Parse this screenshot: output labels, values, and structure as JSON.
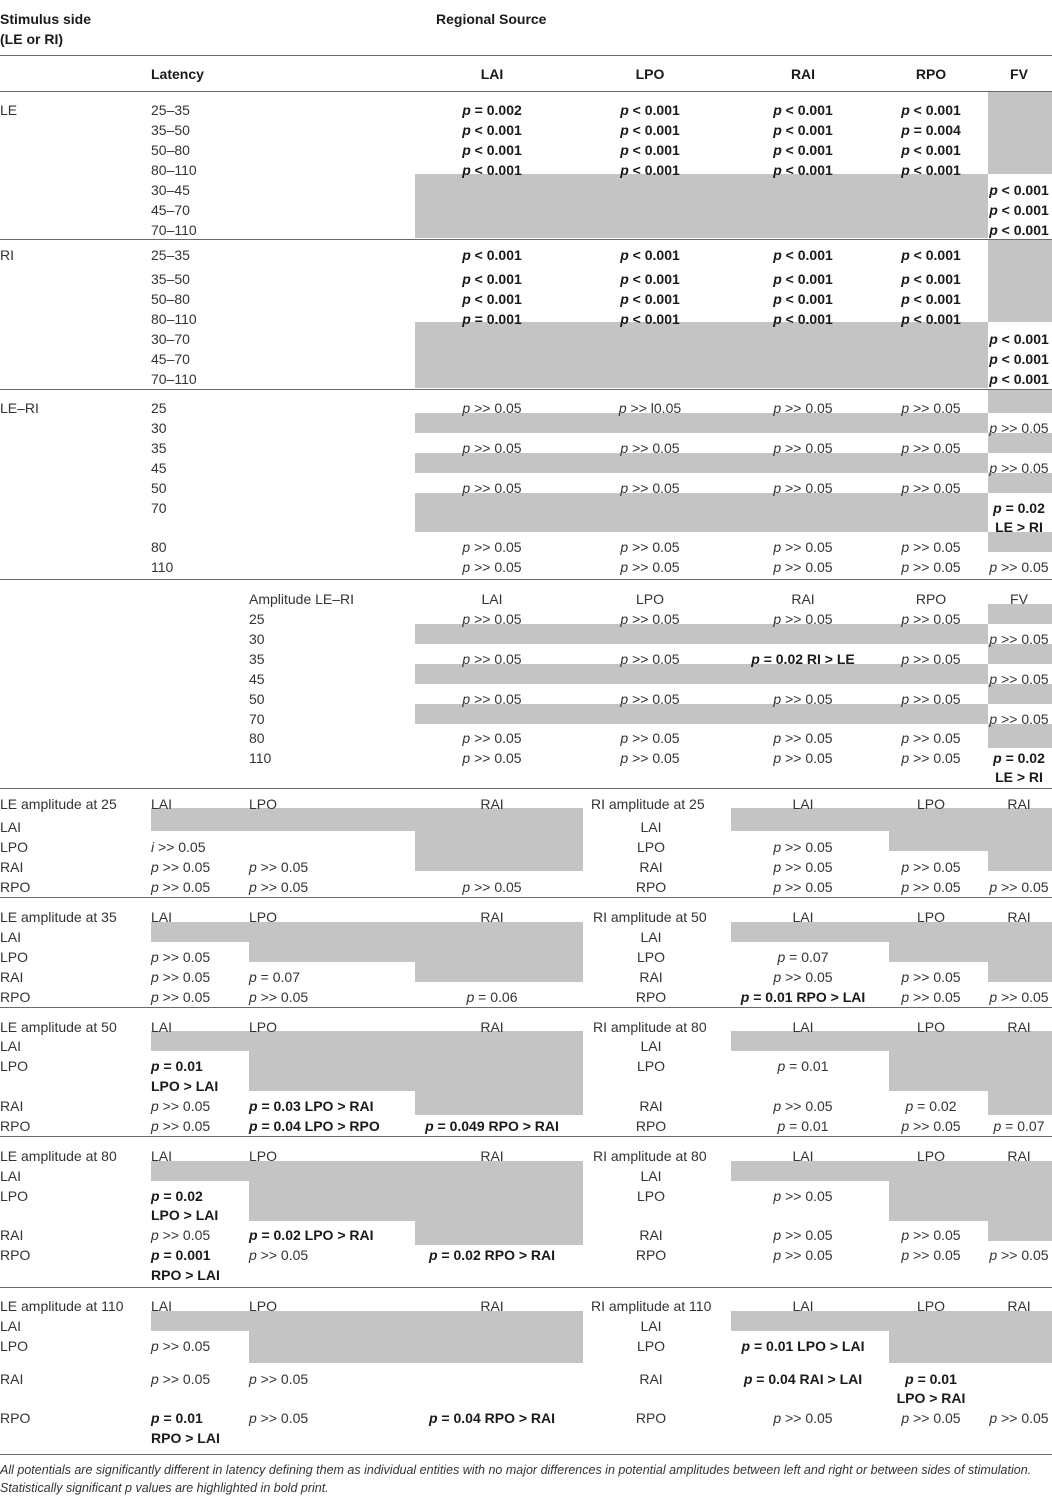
{
  "header": {
    "stimulus_side": "Stimulus side",
    "stimulus_side_sub": "(LE or RI)",
    "regional_source": "Regional Source",
    "latency": "Latency",
    "col_lai": "LAI",
    "col_lpo": "LPO",
    "col_rai": "RAI",
    "col_rpo": "RPO",
    "col_fv": "FV"
  },
  "le": {
    "label": "LE",
    "latencies": [
      "25–35",
      "35–50",
      "50–80",
      "80–110",
      "30–45",
      "45–70",
      "70–110"
    ],
    "lai": [
      "p = 0.002",
      "p < 0.001",
      "p < 0.001",
      "p < 0.001"
    ],
    "lpo": [
      "p < 0.001",
      "p < 0.001",
      "p < 0.001",
      "p < 0.001"
    ],
    "rai": [
      "p < 0.001",
      "p < 0.001",
      "p < 0.001",
      "p < 0.001"
    ],
    "rpo": [
      "p < 0.001",
      "p = 0.004",
      "p < 0.001",
      "p < 0.001"
    ],
    "fv": [
      "p < 0.001",
      "p < 0.001",
      "p < 0.001"
    ]
  },
  "ri": {
    "label": "RI",
    "latencies": [
      "25–35",
      "35–50",
      "50–80",
      "80–110",
      "30–70",
      "45–70",
      "70–110"
    ],
    "lai": [
      "p < 0.001",
      "p < 0.001",
      "p < 0.001",
      "p = 0.001"
    ],
    "lpo": [
      "p < 0.001",
      "p < 0.001",
      "p < 0.001",
      "p < 0.001"
    ],
    "rai": [
      "p < 0.001",
      "p < 0.001",
      "p < 0.001",
      "p < 0.001"
    ],
    "rpo": [
      "p < 0.001",
      "p < 0.001",
      "p < 0.001",
      "p < 0.001"
    ],
    "fv": [
      "p < 0.001",
      "p < 0.001",
      "p < 0.001"
    ]
  },
  "leri": {
    "label": "LE–RI",
    "latencies": [
      "25",
      "30",
      "35",
      "45",
      "50",
      "70",
      "80",
      "110"
    ],
    "lai": [
      "p >> 0.05",
      "p >> 0.05",
      "p >> 0.05",
      "p >> 0.05",
      "p >> 0.05"
    ],
    "lpo": [
      "p >> l0.05",
      "p >> 0.05",
      "p >> 0.05",
      "p >> 0.05",
      "p >> 0.05"
    ],
    "rai": [
      "p >> 0.05",
      "p >> 0.05",
      "p >> 0.05",
      "p >> 0.05",
      "p >> 0.05"
    ],
    "rpo": [
      "p >> 0.05",
      "p >> 0.05",
      "p >> 0.05",
      "p >> 0.05",
      "p >> 0.05"
    ],
    "fv": [
      "p >> 0.05",
      "p >> 0.05",
      "p = 0.02",
      "LE > RI",
      "p >> 0.05"
    ]
  },
  "amp": {
    "label": "Amplitude LE–RI",
    "cols": [
      "LAI",
      "LPO",
      "RAI",
      "RPO",
      "FV"
    ],
    "latencies": [
      "25",
      "30",
      "35",
      "45",
      "50",
      "70",
      "80",
      "110"
    ],
    "lai": [
      "p >> 0.05",
      "p >> 0.05",
      "p >> 0.05",
      "p >> 0.05",
      "p >> 0.05"
    ],
    "lpo": [
      "p >> 0.05",
      "p >> 0.05",
      "p >> 0.05",
      "p >> 0.05",
      "p >> 0.05"
    ],
    "rai": [
      "p >> 0.05",
      "p = 0.02 RI > LE",
      "p >> 0.05",
      "p >> 0.05",
      "p >> 0.05"
    ],
    "rpo": [
      "p >> 0.05",
      "p >> 0.05",
      "p >> 0.05",
      "p >> 0.05",
      "p >> 0.05"
    ],
    "fv": [
      "p >> 0.05",
      "p >> 0.05",
      "p >> 0.05",
      "p = 0.02",
      "LE > RI"
    ]
  },
  "matrix_cols": [
    "LAI",
    "LPO",
    "RAI"
  ],
  "matrix_rows": [
    "LAI",
    "LPO",
    "RAI",
    "RPO"
  ],
  "m25": {
    "le_title": "LE amplitude at 25",
    "ri_title": "RI amplitude at 25",
    "le": [
      "i >> 0.05",
      "p >> 0.05",
      "p >> 0.05",
      "p >> 0.05",
      "p >> 0.05",
      "p >> 0.05"
    ],
    "ri": [
      "p >> 0.05",
      "p >> 0.05",
      "p >> 0.05",
      "p >> 0.05",
      "p >> 0.05",
      "p >> 0.05"
    ]
  },
  "m35": {
    "le_title": "LE amplitude at 35",
    "ri_title": "RI amplitude at 50",
    "le": [
      "p >> 0.05",
      "p >> 0.05",
      "p = 0.07",
      "p >> 0.05",
      "p >> 0.05",
      "p = 0.06"
    ],
    "ri": [
      "p = 0.07",
      "p >> 0.05",
      "p >> 0.05",
      "p = 0.01 RPO > LAI",
      "p >> 0.05",
      "p >> 0.05"
    ]
  },
  "m50": {
    "le_title": "LE amplitude at 50",
    "ri_title": "RI amplitude at 80",
    "le": [
      "p = 0.01",
      "LPO > LAI",
      "p >> 0.05",
      "p = 0.03 LPO > RAI",
      "p >> 0.05",
      "p = 0.04 LPO > RPO",
      "p = 0.049 RPO > RAI"
    ],
    "ri": [
      "p = 0.01",
      "p >> 0.05",
      "p = 0.02",
      "p = 0.01",
      "p >> 0.05",
      "p = 0.07"
    ]
  },
  "m80": {
    "le_title": "LE amplitude at 80",
    "ri_title": "RI amplitude at 80",
    "le": [
      "p = 0.02",
      "LPO > LAI",
      "p >> 0.05",
      "p = 0.02 LPO > RAI",
      "p = 0.001",
      "RPO > LAI",
      "p >> 0.05",
      "p = 0.02 RPO > RAI"
    ],
    "ri": [
      "p >> 0.05",
      "p >> 0.05",
      "p >> 0.05",
      "p >> 0.05",
      "p >> 0.05",
      "p >> 0.05"
    ]
  },
  "m110": {
    "le_title": "LE amplitude at 110",
    "ri_title": "RI amplitude at 110",
    "le": [
      "p >> 0.05",
      "p >> 0.05",
      "p >> 0.05",
      "p = 0.01",
      "RPO > LAI",
      "p >> 0.05",
      "p = 0.04 RPO > RAI"
    ],
    "ri": [
      "p = 0.01 LPO > LAI",
      "p = 0.04 RAI > LAI",
      "p = 0.01",
      "LPO > RAI",
      "p >> 0.05",
      "p >> 0.05",
      "p >> 0.05"
    ]
  },
  "footnote": {
    "line1": "All potentials are significantly different in latency defining them as individual entities with no major differences in potential amplitudes between left and right or between sides of stimulation.",
    "line2": "Statistically significant p values are highlighted in bold print."
  }
}
